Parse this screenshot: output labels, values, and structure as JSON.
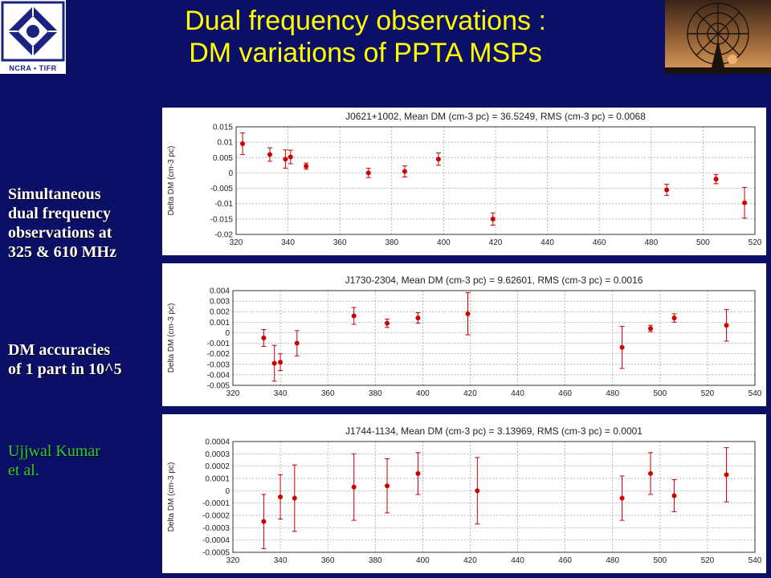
{
  "title_line1": "Dual frequency observations :",
  "title_line2": "DM  variations  of  PPTA  MSPs",
  "logo_text": "NCRA • TIFR",
  "notes": {
    "sim": [
      "Simultaneous",
      "dual frequency",
      "observations at",
      "325 & 610 MHz"
    ],
    "acc": [
      "DM accuracies",
      "of  1 part in 10^5"
    ],
    "author": [
      "Ujjwal  Kumar",
      "et al."
    ]
  },
  "colors": {
    "background": "#0b0f66",
    "title": "#ffff00",
    "author": "#33cc33",
    "points": "#cc0000"
  },
  "chart_data": [
    {
      "type": "scatter",
      "title": "J0621+1002,   Mean DM (cm-3 pc) = 36.5249,   RMS (cm-3 pc) = 0.0068",
      "ylabel": "Delta DM (cm-3 pc)",
      "xlim": [
        320,
        520
      ],
      "ylim": [
        -0.02,
        0.015
      ],
      "xticks": [
        "320",
        "340",
        "360",
        "380",
        "400",
        "420",
        "440",
        "460",
        "480",
        "500",
        "520"
      ],
      "yticks": [
        "-0.02",
        "-0.015",
        "-0.01",
        "-0.005",
        "0",
        "0.005",
        "0.01",
        "0.015"
      ],
      "grid": true,
      "x": [
        322.5,
        333,
        339,
        341,
        347,
        371,
        385,
        398,
        419,
        486,
        505,
        516
      ],
      "y": [
        0.0095,
        0.006,
        0.0045,
        0.0052,
        0.0022,
        0.0,
        0.0005,
        0.0045,
        -0.015,
        -0.0055,
        -0.002,
        -0.0097
      ],
      "err": [
        0.0035,
        0.0022,
        0.003,
        0.0022,
        0.001,
        0.0015,
        0.0018,
        0.002,
        0.002,
        0.0018,
        0.0015,
        0.005
      ]
    },
    {
      "type": "scatter",
      "title": "J1730-2304,   Mean DM (cm-3 pc) = 9.62601,   RMS (cm-3 pc) = 0.0016",
      "ylabel": "Delta DM (cm-3 pc)",
      "xlim": [
        320,
        540
      ],
      "ylim": [
        -0.005,
        0.004
      ],
      "xticks": [
        "320",
        "340",
        "360",
        "380",
        "400",
        "420",
        "440",
        "460",
        "480",
        "500",
        "520",
        "540"
      ],
      "yticks": [
        "-0.005",
        "-0.004",
        "-0.003",
        "-0.002",
        "-0.001",
        "0",
        "0.001",
        "0.002",
        "0.003",
        "0.004"
      ],
      "grid": true,
      "x": [
        333,
        337.5,
        340,
        347,
        371,
        385,
        398,
        419,
        484,
        496,
        506,
        528
      ],
      "y": [
        -0.0005,
        -0.0029,
        -0.0028,
        -0.001,
        0.0016,
        0.0009,
        0.0014,
        0.0018,
        -0.0014,
        0.0004,
        0.0014,
        0.0007
      ],
      "err": [
        0.0008,
        0.0017,
        0.0008,
        0.0012,
        0.0008,
        0.0004,
        0.0005,
        0.002,
        0.002,
        0.0003,
        0.0004,
        0.0015
      ]
    },
    {
      "type": "scatter",
      "title": "J1744-1134,   Mean DM (cm-3 pc) = 3.13969,   RMS (cm-3 pc) = 0.0001",
      "ylabel": "Delta DM (cm-3 pc)",
      "xlim": [
        320,
        540
      ],
      "ylim": [
        -0.0005,
        0.0004
      ],
      "xticks": [
        "320",
        "340",
        "360",
        "380",
        "400",
        "420",
        "440",
        "460",
        "480",
        "500",
        "520",
        "540"
      ],
      "yticks": [
        "-0.0005",
        "-0.0004",
        "-0.0003",
        "-0.0002",
        "-0.0001",
        "0",
        "0.0001",
        "0.0002",
        "0.0003",
        "0.0004"
      ],
      "grid": true,
      "x": [
        333,
        340,
        346,
        371,
        385,
        398,
        423,
        484,
        496,
        506,
        528
      ],
      "y": [
        -0.00025,
        -5e-05,
        -6e-05,
        3e-05,
        4e-05,
        0.00014,
        0.0,
        -6e-05,
        0.00014,
        -4e-05,
        0.00013
      ],
      "err": [
        0.00022,
        0.00018,
        0.00027,
        0.00027,
        0.00022,
        0.00017,
        0.00027,
        0.00018,
        0.00017,
        0.00013,
        0.00022
      ]
    }
  ]
}
